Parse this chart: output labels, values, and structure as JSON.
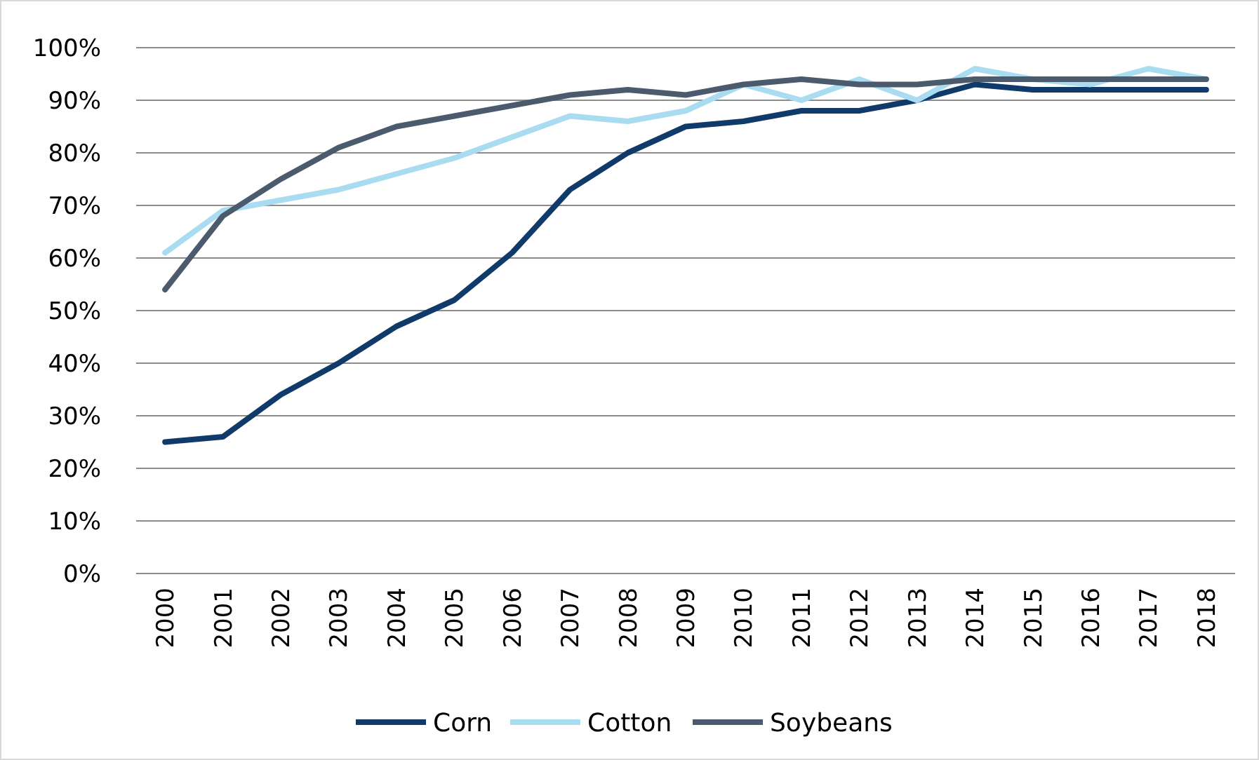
{
  "chart_data": {
    "type": "line",
    "categories": [
      "2000",
      "2001",
      "2002",
      "2003",
      "2004",
      "2005",
      "2006",
      "2007",
      "2008",
      "2009",
      "2010",
      "2011",
      "2012",
      "2013",
      "2014",
      "2015",
      "2016",
      "2017",
      "2018"
    ],
    "series": [
      {
        "name": "Corn",
        "color": "#0f3a6a",
        "values": [
          25,
          26,
          34,
          40,
          47,
          52,
          61,
          73,
          80,
          85,
          86,
          88,
          88,
          90,
          93,
          92,
          92,
          92,
          92
        ]
      },
      {
        "name": "Cotton",
        "color": "#a9dcf1",
        "values": [
          61,
          69,
          71,
          73,
          76,
          79,
          83,
          87,
          86,
          88,
          93,
          90,
          94,
          90,
          96,
          94,
          93,
          96,
          94
        ]
      },
      {
        "name": "Soybeans",
        "color": "#4b5a6c",
        "values": [
          54,
          68,
          75,
          81,
          85,
          87,
          89,
          91,
          92,
          91,
          93,
          94,
          93,
          93,
          94,
          94,
          94,
          94,
          94
        ]
      }
    ],
    "ylim": [
      0,
      100
    ],
    "yticks": [
      {
        "value": 0,
        "label": "0%"
      },
      {
        "value": 10,
        "label": "10%"
      },
      {
        "value": 20,
        "label": "20%"
      },
      {
        "value": 30,
        "label": "30%"
      },
      {
        "value": 40,
        "label": "40%"
      },
      {
        "value": 50,
        "label": "50%"
      },
      {
        "value": 60,
        "label": "60%"
      },
      {
        "value": 70,
        "label": "70%"
      },
      {
        "value": 80,
        "label": "80%"
      },
      {
        "value": 90,
        "label": "90%"
      },
      {
        "value": 100,
        "label": "100%"
      }
    ],
    "grid": "y",
    "legend": "bottom",
    "marker": "none",
    "line_style": "solid"
  }
}
